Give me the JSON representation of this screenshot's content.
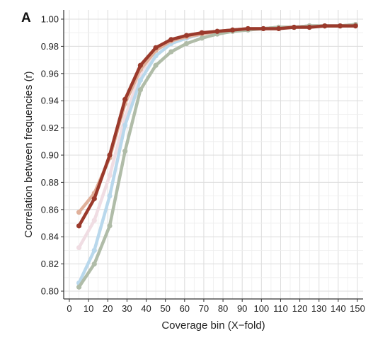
{
  "panel_label": "A",
  "chart_data": {
    "type": "line",
    "title": "",
    "xlabel": "Coverage bin (X−fold)",
    "ylabel": "Correlation between frequencies (r)",
    "xlim": [
      0,
      150
    ],
    "ylim": [
      0.8,
      1.0
    ],
    "x_ticks": [
      "0",
      "10",
      "20",
      "30",
      "40",
      "50",
      "60",
      "70",
      "80",
      "90",
      "100",
      "110",
      "120",
      "130",
      "140",
      "150"
    ],
    "y_ticks": [
      "0.80",
      "0.82",
      "0.84",
      "0.86",
      "0.88",
      "0.90",
      "0.92",
      "0.94",
      "0.96",
      "0.98",
      "1.00"
    ],
    "grid": true,
    "legend": "none",
    "x": [
      5,
      13,
      21,
      29,
      37,
      45,
      53,
      61,
      69,
      77,
      85,
      93,
      101,
      109,
      117,
      125,
      133,
      141,
      149
    ],
    "series": [
      {
        "color": "#f0dde3",
        "values": [
          0.832,
          0.852,
          0.885,
          0.928,
          0.96,
          0.977,
          0.984,
          0.987,
          0.989,
          0.991,
          0.992,
          0.993,
          0.993,
          0.994,
          0.994,
          0.995,
          0.995,
          0.995,
          0.996
        ]
      },
      {
        "color": "#b9d8ec",
        "values": [
          0.806,
          0.83,
          0.87,
          0.922,
          0.955,
          0.973,
          0.982,
          0.986,
          0.989,
          0.991,
          0.992,
          0.993,
          0.993,
          0.994,
          0.994,
          0.995,
          0.995,
          0.995,
          0.996
        ]
      },
      {
        "color": "#e0b09a",
        "values": [
          0.858,
          0.872,
          0.898,
          0.938,
          0.963,
          0.977,
          0.984,
          0.987,
          0.989,
          0.991,
          0.992,
          0.993,
          0.993,
          0.994,
          0.994,
          0.995,
          0.995,
          0.995,
          0.996
        ]
      },
      {
        "color": "#b0bca8",
        "values": [
          0.803,
          0.82,
          0.848,
          0.903,
          0.948,
          0.966,
          0.976,
          0.982,
          0.986,
          0.989,
          0.991,
          0.992,
          0.993,
          0.994,
          0.994,
          0.995,
          0.995,
          0.995,
          0.996
        ]
      },
      {
        "color": "#9b3a2c",
        "values": [
          0.848,
          0.868,
          0.9,
          0.941,
          0.966,
          0.979,
          0.985,
          0.988,
          0.99,
          0.991,
          0.992,
          0.993,
          0.993,
          0.993,
          0.994,
          0.994,
          0.995,
          0.995,
          0.995
        ]
      }
    ]
  }
}
